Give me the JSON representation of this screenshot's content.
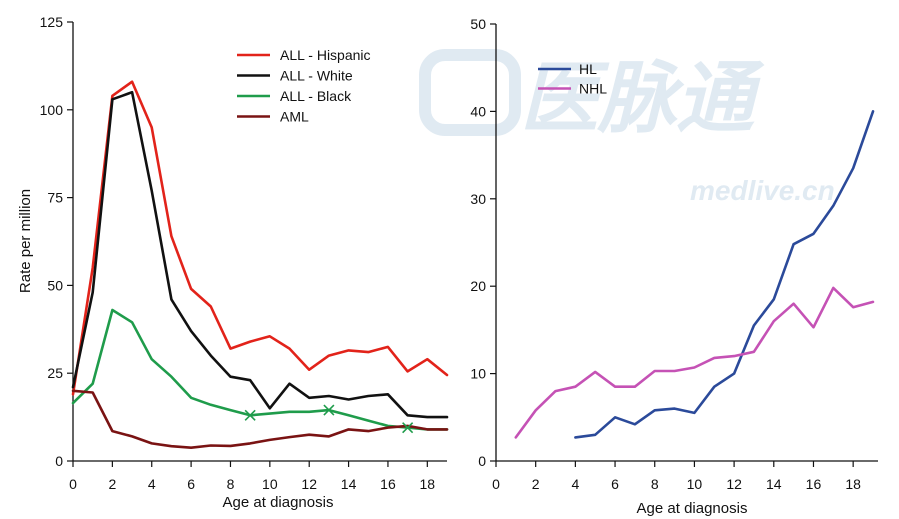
{
  "chart_data": [
    {
      "type": "line",
      "xlabel": "Age at diagnosis",
      "ylabel": "Rate per million",
      "xlim": [
        0,
        19
      ],
      "ylim": [
        0,
        125
      ],
      "x_ticks": [
        0,
        2,
        4,
        6,
        8,
        10,
        12,
        14,
        16,
        18
      ],
      "y_ticks": [
        0,
        25,
        50,
        75,
        100,
        125
      ],
      "grid": false,
      "legend_position": "top-right",
      "series": [
        {
          "name": "ALL - Hispanic",
          "color": "#e2231a",
          "x": [
            0,
            1,
            2,
            3,
            4,
            5,
            6,
            7,
            8,
            9,
            10,
            11,
            12,
            13,
            14,
            15,
            16,
            17,
            18,
            19
          ],
          "values": [
            19,
            55,
            104,
            108,
            95,
            64,
            49,
            44,
            32,
            34,
            35.5,
            32,
            26,
            30,
            31.5,
            31,
            32.5,
            25.5,
            29,
            24.5
          ]
        },
        {
          "name": "ALL - White",
          "color": "#111111",
          "x": [
            0,
            1,
            2,
            2.5,
            3,
            4,
            5,
            6,
            7,
            8,
            9,
            10,
            11,
            12,
            13,
            14,
            15,
            16,
            17,
            18,
            19
          ],
          "values": [
            21,
            48,
            103,
            104,
            105,
            77,
            46,
            37,
            30,
            24,
            23,
            15,
            22,
            18,
            18.5,
            17.5,
            18.5,
            19,
            13,
            12.5,
            12.5
          ]
        },
        {
          "name": "ALL - Black",
          "color": "#1f9c4b",
          "x": [
            0,
            1,
            2,
            3,
            4,
            5,
            6,
            7,
            8,
            9,
            10,
            11,
            12,
            13,
            14,
            15,
            16,
            17,
            18,
            19
          ],
          "values": [
            16.5,
            22,
            43,
            39.5,
            29,
            24,
            18,
            16,
            14.5,
            13,
            13.5,
            14,
            14,
            14.5,
            13,
            11.5,
            10,
            9.5,
            9,
            9
          ],
          "markers_x": [
            9,
            13,
            17
          ]
        },
        {
          "name": "AML",
          "color": "#7a1313",
          "x": [
            0,
            1,
            2,
            3,
            4,
            5,
            6,
            7,
            8,
            9,
            10,
            11,
            12,
            13,
            14,
            15,
            16,
            17,
            18,
            19
          ],
          "values": [
            20,
            19.5,
            8.5,
            7,
            5,
            4.2,
            3.8,
            4.4,
            4.3,
            5,
            6,
            6.8,
            7.5,
            7,
            9,
            8.5,
            9.5,
            10,
            9,
            9
          ]
        }
      ]
    },
    {
      "type": "line",
      "xlabel": "Age at diagnosis",
      "ylabel": "",
      "xlim": [
        0,
        19
      ],
      "ylim": [
        0,
        50
      ],
      "x_ticks": [
        0,
        2,
        4,
        6,
        8,
        10,
        12,
        14,
        16,
        18
      ],
      "y_ticks": [
        0,
        10,
        20,
        30,
        40,
        50
      ],
      "grid": false,
      "legend_position": "top-left",
      "series": [
        {
          "name": "HL",
          "color": "#2b4a9a",
          "x": [
            4,
            5,
            6,
            7,
            8,
            9,
            10,
            11,
            12,
            13,
            14,
            15,
            16,
            17,
            18,
            19
          ],
          "values": [
            2.7,
            3,
            5,
            4.2,
            5.8,
            6,
            5.5,
            8.5,
            10,
            15.5,
            18.5,
            24.8,
            26,
            29.2,
            33.5,
            40
          ]
        },
        {
          "name": "NHL",
          "color": "#c552b5",
          "x": [
            1,
            2,
            3,
            4,
            5,
            6,
            7,
            8,
            9,
            10,
            11,
            12,
            13,
            14,
            15,
            16,
            17,
            18,
            19
          ],
          "values": [
            2.7,
            5.8,
            8,
            8.5,
            10.2,
            8.5,
            8.5,
            10.3,
            10.3,
            10.7,
            11.8,
            12,
            12.5,
            16,
            18,
            15.3,
            19.8,
            17.6,
            18.2
          ]
        }
      ]
    }
  ],
  "watermark": {
    "logo_chars": "医脉通",
    "site": "medlive.cn"
  },
  "colors": {
    "axis": "#111111",
    "watermark": "#dde8f1"
  }
}
